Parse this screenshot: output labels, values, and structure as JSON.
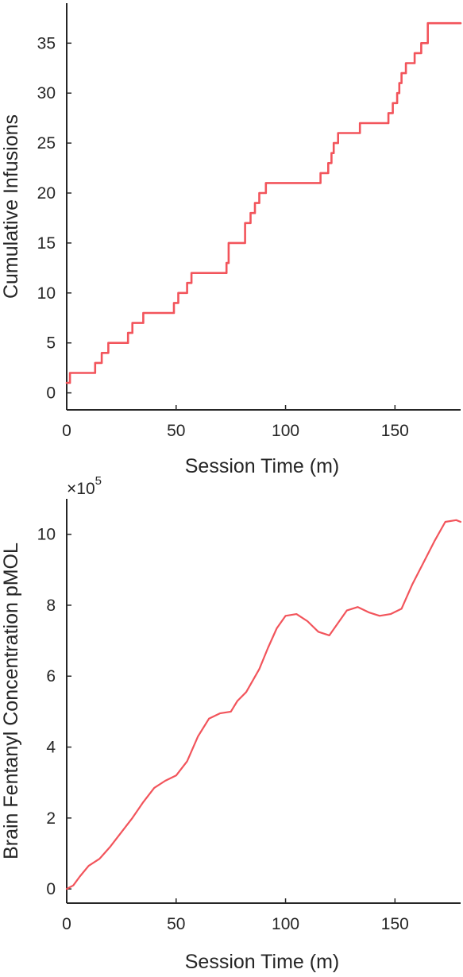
{
  "chart_data": [
    {
      "type": "line",
      "step": true,
      "xlabel": "Session Time (m)",
      "ylabel": "Cumulative Infusions",
      "xlim": [
        0,
        180
      ],
      "ylim": [
        -1.7,
        39
      ],
      "xticks": [
        0,
        50,
        100,
        150
      ],
      "yticks": [
        0,
        5,
        10,
        15,
        20,
        25,
        30,
        35
      ],
      "grid": false,
      "color": "#f2545b",
      "series": [
        {
          "x": [
            0,
            1.5,
            13,
            16,
            19,
            28,
            30,
            35,
            49,
            51,
            55,
            57,
            73,
            74,
            81.5,
            84,
            86,
            88,
            91,
            116,
            119.5,
            121,
            122,
            124,
            134,
            147,
            149,
            151,
            152,
            153,
            155,
            159,
            162,
            165,
            180
          ],
          "values": [
            1,
            2,
            3,
            4,
            5,
            6,
            7,
            8,
            9,
            10,
            11,
            12,
            13,
            15,
            17,
            18,
            19,
            20,
            21,
            22,
            23,
            24,
            25,
            26,
            27,
            28,
            29,
            30,
            31,
            32,
            33,
            34,
            35,
            37,
            37
          ]
        }
      ]
    },
    {
      "type": "line",
      "xlabel": "Session Time (m)",
      "ylabel": "Brain Fentanyl Concentration pMOL",
      "exponent_base": "×10",
      "exponent_power": "5",
      "xlim": [
        0,
        180
      ],
      "ylim": [
        -0.4,
        11
      ],
      "xticks": [
        0,
        50,
        100,
        150
      ],
      "yticks": [
        0,
        2,
        4,
        6,
        8,
        10
      ],
      "grid": false,
      "color": "#f2545b",
      "series": [
        {
          "x": [
            0,
            3,
            6,
            10,
            15,
            20,
            25,
            30,
            35,
            40,
            45,
            50,
            55,
            60,
            65,
            70,
            75,
            78,
            82,
            88,
            92,
            96,
            100,
            105,
            110,
            115,
            120,
            124,
            128,
            133,
            138,
            143,
            148,
            153,
            158,
            163,
            168,
            173,
            178,
            180
          ],
          "values": [
            0,
            0.1,
            0.35,
            0.65,
            0.85,
            1.2,
            1.6,
            2.0,
            2.45,
            2.85,
            3.05,
            3.2,
            3.6,
            4.3,
            4.8,
            4.95,
            5.0,
            5.3,
            5.55,
            6.2,
            6.8,
            7.35,
            7.7,
            7.75,
            7.55,
            7.25,
            7.15,
            7.5,
            7.85,
            7.95,
            7.8,
            7.7,
            7.75,
            7.9,
            8.6,
            9.2,
            9.8,
            10.35,
            10.4,
            10.35
          ]
        }
      ]
    }
  ]
}
